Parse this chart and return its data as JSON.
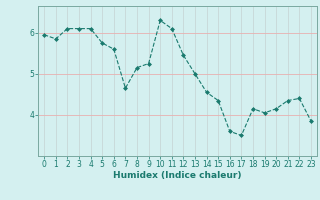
{
  "x": [
    0,
    1,
    2,
    3,
    4,
    5,
    6,
    7,
    8,
    9,
    10,
    11,
    12,
    13,
    14,
    15,
    16,
    17,
    18,
    19,
    20,
    21,
    22,
    23
  ],
  "y": [
    5.95,
    5.85,
    6.1,
    6.1,
    6.1,
    5.75,
    5.6,
    4.65,
    5.15,
    5.25,
    6.3,
    6.1,
    5.45,
    5.0,
    4.55,
    4.35,
    3.6,
    3.5,
    4.15,
    4.05,
    4.15,
    4.35,
    4.4,
    3.85
  ],
  "line_color": "#1a7a6e",
  "marker": "D",
  "marker_size": 2.0,
  "background_color": "#d4f0f0",
  "grid_color_v": "#c8d8d8",
  "grid_color_h": "#e8b0b0",
  "xlabel": "Humidex (Indice chaleur)",
  "xlabel_fontsize": 6.5,
  "ylim": [
    3.0,
    6.65
  ],
  "xlim": [
    -0.5,
    23.5
  ],
  "yticks": [
    4,
    5,
    6
  ],
  "xticks": [
    0,
    1,
    2,
    3,
    4,
    5,
    6,
    7,
    8,
    9,
    10,
    11,
    12,
    13,
    14,
    15,
    16,
    17,
    18,
    19,
    20,
    21,
    22,
    23
  ],
  "tick_fontsize": 5.5
}
